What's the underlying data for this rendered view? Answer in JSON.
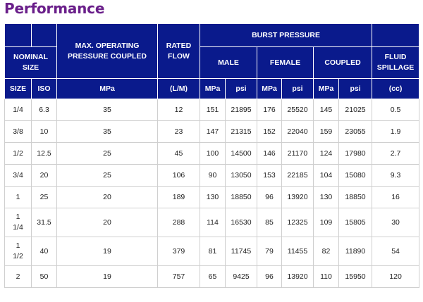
{
  "title": "Performance",
  "headers": {
    "nominal_size": "NOMINAL SIZE",
    "max_operating": "MAX. OPERATING PRESSURE COUPLED",
    "rated_flow": "RATED FLOW",
    "burst_pressure": "BURST PRESSURE",
    "male": "MALE",
    "female": "FEMALE",
    "coupled": "COUPLED",
    "fluid_spillage": "FLUID SPILLAGE",
    "size": "SIZE",
    "iso": "ISO",
    "mpa": "MPa",
    "lm": "(L/M)",
    "psi": "psi",
    "cc": "(cc)"
  },
  "rows": [
    {
      "size": "1/4",
      "iso": "6.3",
      "max_mpa": "35",
      "flow": "12",
      "male_mpa": "151",
      "male_psi": "21895",
      "female_mpa": "176",
      "female_psi": "25520",
      "coupled_mpa": "145",
      "coupled_psi": "21025",
      "spill": "0.5"
    },
    {
      "size": "3/8",
      "iso": "10",
      "max_mpa": "35",
      "flow": "23",
      "male_mpa": "147",
      "male_psi": "21315",
      "female_mpa": "152",
      "female_psi": "22040",
      "coupled_mpa": "159",
      "coupled_psi": "23055",
      "spill": "1.9"
    },
    {
      "size": "1/2",
      "iso": "12.5",
      "max_mpa": "25",
      "flow": "45",
      "male_mpa": "100",
      "male_psi": "14500",
      "female_mpa": "146",
      "female_psi": "21170",
      "coupled_mpa": "124",
      "coupled_psi": "17980",
      "spill": "2.7"
    },
    {
      "size": "3/4",
      "iso": "20",
      "max_mpa": "25",
      "flow": "106",
      "male_mpa": "90",
      "male_psi": "13050",
      "female_mpa": "153",
      "female_psi": "22185",
      "coupled_mpa": "104",
      "coupled_psi": "15080",
      "spill": "9.3"
    },
    {
      "size": "1",
      "iso": "25",
      "max_mpa": "20",
      "flow": "189",
      "male_mpa": "130",
      "male_psi": "18850",
      "female_mpa": "96",
      "female_psi": "13920",
      "coupled_mpa": "130",
      "coupled_psi": "18850",
      "spill": "16"
    },
    {
      "size": "1 1/4",
      "iso": "31.5",
      "max_mpa": "20",
      "flow": "288",
      "male_mpa": "114",
      "male_psi": "16530",
      "female_mpa": "85",
      "female_psi": "12325",
      "coupled_mpa": "109",
      "coupled_psi": "15805",
      "spill": "30"
    },
    {
      "size": "1 1/2",
      "iso": "40",
      "max_mpa": "19",
      "flow": "379",
      "male_mpa": "81",
      "male_psi": "11745",
      "female_mpa": "79",
      "female_psi": "11455",
      "coupled_mpa": "82",
      "coupled_psi": "11890",
      "spill": "54"
    },
    {
      "size": "2",
      "iso": "50",
      "max_mpa": "19",
      "flow": "757",
      "male_mpa": "65",
      "male_psi": "9425",
      "female_mpa": "96",
      "female_psi": "13920",
      "coupled_mpa": "110",
      "coupled_psi": "15950",
      "spill": "120"
    }
  ]
}
